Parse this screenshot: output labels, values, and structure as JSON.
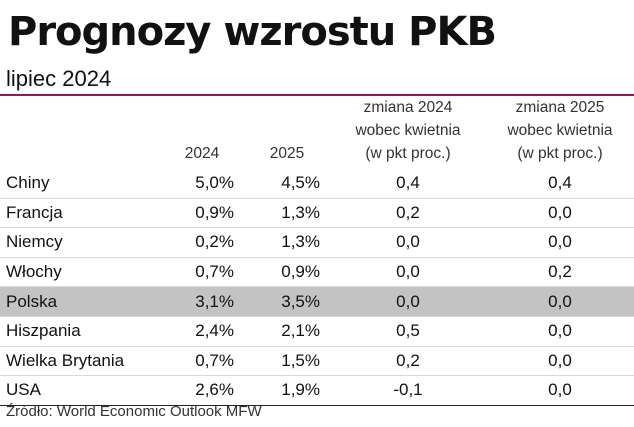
{
  "title": "Prognozy wzrostu PKB",
  "subtitle": "lipiec 2024",
  "source": "Źródło: World Economic Outlook MFW",
  "chart_data": {
    "type": "table",
    "title": "Prognozy wzrostu PKB",
    "subtitle": "lipiec 2024",
    "columns": [
      "",
      "2024",
      "2025",
      "zmiana 2024 wobec kwietnia (w pkt proc.)",
      "zmiana 2025 wobec kwietnia (w pkt proc.)"
    ],
    "header_lines": [
      [
        ""
      ],
      [
        "2024"
      ],
      [
        "2025"
      ],
      [
        "zmiana 2024",
        "wobec kwietnia",
        "(w pkt proc.)"
      ],
      [
        "zmiana 2025",
        "wobec kwietnia",
        "(w pkt proc.)"
      ]
    ],
    "rows": [
      [
        "Chiny",
        "5,0%",
        "4,5%",
        "0,4",
        "0,4"
      ],
      [
        "Francja",
        "0,9%",
        "1,3%",
        "0,2",
        "0,0"
      ],
      [
        "Niemcy",
        "0,2%",
        "1,3%",
        "0,0",
        "0,0"
      ],
      [
        "Włochy",
        "0,7%",
        "0,9%",
        "0,0",
        "0,2"
      ],
      [
        "Polska",
        "3,1%",
        "3,5%",
        "0,0",
        "0,0"
      ],
      [
        "Hiszpania",
        "2,4%",
        "2,1%",
        "0,5",
        "0,0"
      ],
      [
        "Wielka Brytania",
        "0,7%",
        "1,5%",
        "0,2",
        "0,0"
      ],
      [
        "USA",
        "2,6%",
        "1,9%",
        "-0,1",
        "0,0"
      ]
    ],
    "highlighted_row": "Polska",
    "colors": {
      "accent_rule": "#8b1a5c",
      "highlight_row": "#c3c3c3",
      "row_divider": "#d9d9d9"
    }
  }
}
